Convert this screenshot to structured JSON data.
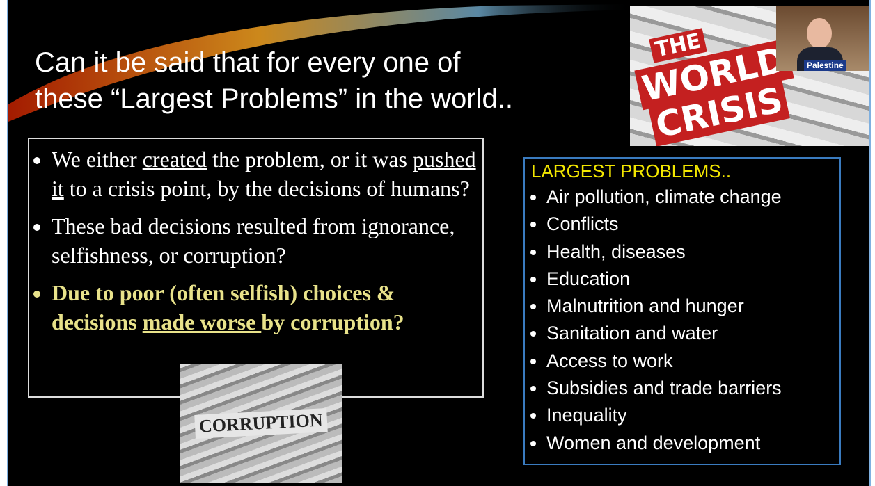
{
  "slide": {
    "title": [
      "Can it be said that for every one of",
      "these “Largest Problems” in the world.."
    ],
    "left_bullets": [
      {
        "segments": [
          {
            "text": "We either "
          },
          {
            "text": "created",
            "underline": true
          },
          {
            "text": " the problem, or it was "
          },
          {
            "text": "pushed it",
            "underline": true
          },
          {
            "text": " to a crisis point, by the decisions of humans?"
          }
        ]
      },
      {
        "segments": [
          {
            "text": "These bad decisions resulted from ignorance, selfishness, or corruption?"
          }
        ]
      },
      {
        "segments": [
          {
            "text": "Due to poor (often selfish) choices & decisions "
          },
          {
            "text": "made worse ",
            "underline": true
          },
          {
            "text": "by corruption?"
          }
        ],
        "highlight": true
      }
    ],
    "problems_heading": "LARGEST PROBLEMS..",
    "problems": [
      "Air pollution, climate change",
      "Conflicts",
      "Health, diseases",
      "Education",
      "Malnutrition and hunger",
      "Sanitation and water",
      "Access to work",
      "Subsidies and trade barriers",
      "Inequality",
      "Women and development"
    ],
    "corruption_image_text": "CORRUPTION",
    "poster_text": [
      "THE",
      "WORLD",
      "CRISIS"
    ],
    "video_caption": "Palestine"
  }
}
